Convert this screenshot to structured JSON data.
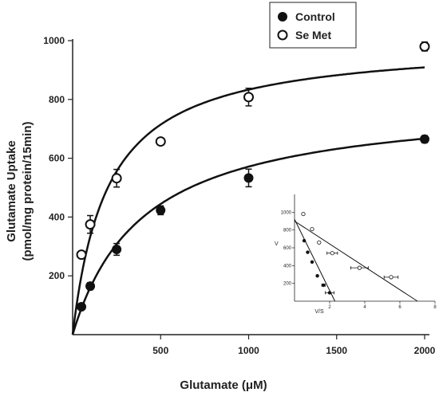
{
  "chart_data": [
    {
      "type": "scatter",
      "title": "",
      "xlabel": "Glutamate (μM)",
      "ylabel_line1": "Glutamate Uptake",
      "ylabel_line2": "(pmol/mg protein/15min)",
      "xlim": [
        0,
        2000
      ],
      "ylim": [
        0,
        1000
      ],
      "x_ticks": [
        "500",
        "1000",
        "1500",
        "2000"
      ],
      "y_ticks": [
        "200",
        "400",
        "600",
        "800",
        "1000"
      ],
      "legend": {
        "position": "top-right",
        "entries": [
          "Control",
          "Se Met"
        ]
      },
      "series": [
        {
          "name": "Control",
          "marker": "filled-circle",
          "fit": {
            "model": "michaelis-menten",
            "vmax": 800,
            "km": 400
          },
          "points": [
            {
              "x": 50,
              "y": 95,
              "err": 10
            },
            {
              "x": 100,
              "y": 165,
              "err": 12
            },
            {
              "x": 250,
              "y": 290,
              "err": 20
            },
            {
              "x": 500,
              "y": 423,
              "err": 15
            },
            {
              "x": 1000,
              "y": 533,
              "err": 30
            },
            {
              "x": 2000,
              "y": 665,
              "err": 12
            }
          ]
        },
        {
          "name": "Se Met",
          "marker": "open-circle",
          "fit": {
            "model": "michaelis-menten",
            "vmax": 1000,
            "km": 200
          },
          "points": [
            {
              "x": 50,
              "y": 272,
              "err": 10
            },
            {
              "x": 100,
              "y": 375,
              "err": 30
            },
            {
              "x": 250,
              "y": 532,
              "err": 30
            },
            {
              "x": 500,
              "y": 657,
              "err": 12
            },
            {
              "x": 1000,
              "y": 808,
              "err": 30
            },
            {
              "x": 2000,
              "y": 980,
              "err": 15
            }
          ]
        }
      ]
    },
    {
      "type": "scatter",
      "title": "",
      "xlabel": "V/S",
      "ylabel": "V",
      "xlim": [
        0,
        8
      ],
      "ylim": [
        0,
        1200
      ],
      "x_ticks": [
        "2",
        "4",
        "6",
        "8"
      ],
      "y_ticks": [
        "200",
        "400",
        "600",
        "800",
        "1000"
      ],
      "series": [
        {
          "name": "Control",
          "marker": "filled-circle",
          "line": [
            [
              0,
              920
            ],
            [
              2.3,
              0
            ]
          ],
          "points": [
            {
              "x": 0.55,
              "y": 680,
              "xerr": 0
            },
            {
              "x": 0.75,
              "y": 550,
              "xerr": 0
            },
            {
              "x": 1.0,
              "y": 440,
              "xerr": 0
            },
            {
              "x": 1.3,
              "y": 285,
              "xerr": 0
            },
            {
              "x": 1.65,
              "y": 180,
              "xerr": 0.1
            },
            {
              "x": 2.0,
              "y": 95,
              "xerr": 0.25
            }
          ]
        },
        {
          "name": "Se Met",
          "marker": "open-circle",
          "line": [
            [
              0,
              900
            ],
            [
              7.0,
              0
            ]
          ],
          "points": [
            {
              "x": 0.5,
              "y": 980,
              "xerr": 0
            },
            {
              "x": 1.0,
              "y": 810,
              "xerr": 0
            },
            {
              "x": 1.4,
              "y": 660,
              "xerr": 0
            },
            {
              "x": 2.15,
              "y": 540,
              "xerr": 0.3
            },
            {
              "x": 3.7,
              "y": 375,
              "xerr": 0.5
            },
            {
              "x": 5.5,
              "y": 270,
              "xerr": 0.4
            }
          ]
        }
      ]
    }
  ]
}
